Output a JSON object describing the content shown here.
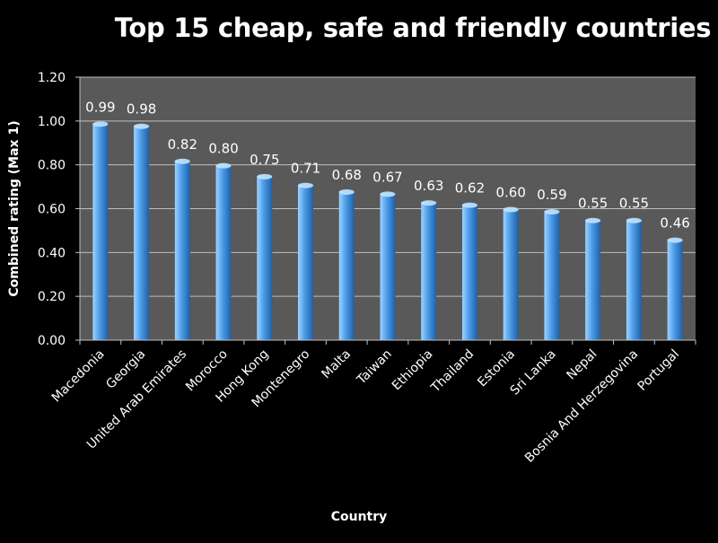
{
  "chart_data": {
    "type": "bar",
    "title": "Top 15 cheap, safe and friendly countries",
    "xlabel": "Country",
    "ylabel": "Combined rating (Max 1)",
    "ylim": [
      0,
      1.2
    ],
    "yticks": [
      "0.00",
      "0.20",
      "0.40",
      "0.60",
      "0.80",
      "1.00",
      "1.20"
    ],
    "grid": true,
    "legend": "none",
    "categories": [
      "Macedonia",
      "Georgia",
      "United Arab Emirates",
      "Morocco",
      "Hong Kong",
      "Montenegro",
      "Malta",
      "Taiwan",
      "Ethiopia",
      "Thailand",
      "Estonia",
      "Sri Lanka",
      "Nepal",
      "Bosnia And Herzegovina",
      "Portugal"
    ],
    "values": [
      0.99,
      0.98,
      0.82,
      0.8,
      0.75,
      0.71,
      0.68,
      0.67,
      0.63,
      0.62,
      0.6,
      0.59,
      0.55,
      0.55,
      0.46
    ],
    "data_labels": [
      "0.99",
      "0.98",
      "0.82",
      "0.80",
      "0.75",
      "0.71",
      "0.68",
      "0.67",
      "0.63",
      "0.62",
      "0.60",
      "0.59",
      "0.55",
      "0.55",
      "0.46"
    ],
    "colors": {
      "background": "#000000",
      "plot_area": "#595959",
      "gridline": "#bfbfbf",
      "bar_light": "#9fd3ff",
      "bar_mid": "#4a9be6",
      "bar_dark": "#1f5fa8",
      "text": "#ffffff"
    }
  }
}
